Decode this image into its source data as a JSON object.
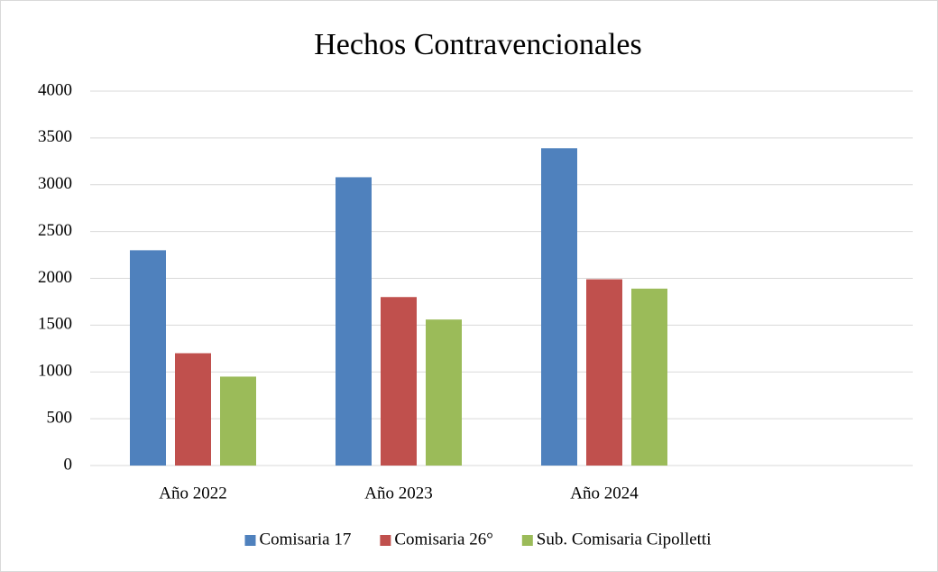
{
  "chart_data": {
    "type": "bar",
    "title": "Hechos Contravencionales",
    "categories": [
      "Año 2022",
      "Año 2023",
      "Año 2024",
      null
    ],
    "series": [
      {
        "name": "Comisaria 17",
        "color": "#4f81bd",
        "values": [
          2300,
          3080,
          3390,
          null
        ]
      },
      {
        "name": "Comisaria 26°",
        "color": "#c0504d",
        "values": [
          1200,
          1800,
          1990,
          null
        ]
      },
      {
        "name": "Sub. Comisaria Cipolletti",
        "color": "#9bbb59",
        "values": [
          950,
          1560,
          1890,
          null
        ]
      }
    ],
    "ylim": [
      0,
      4000
    ],
    "yticks": [
      0,
      500,
      1000,
      1500,
      2000,
      2500,
      3000,
      3500,
      4000
    ],
    "grid": true,
    "legend": "bottom"
  }
}
